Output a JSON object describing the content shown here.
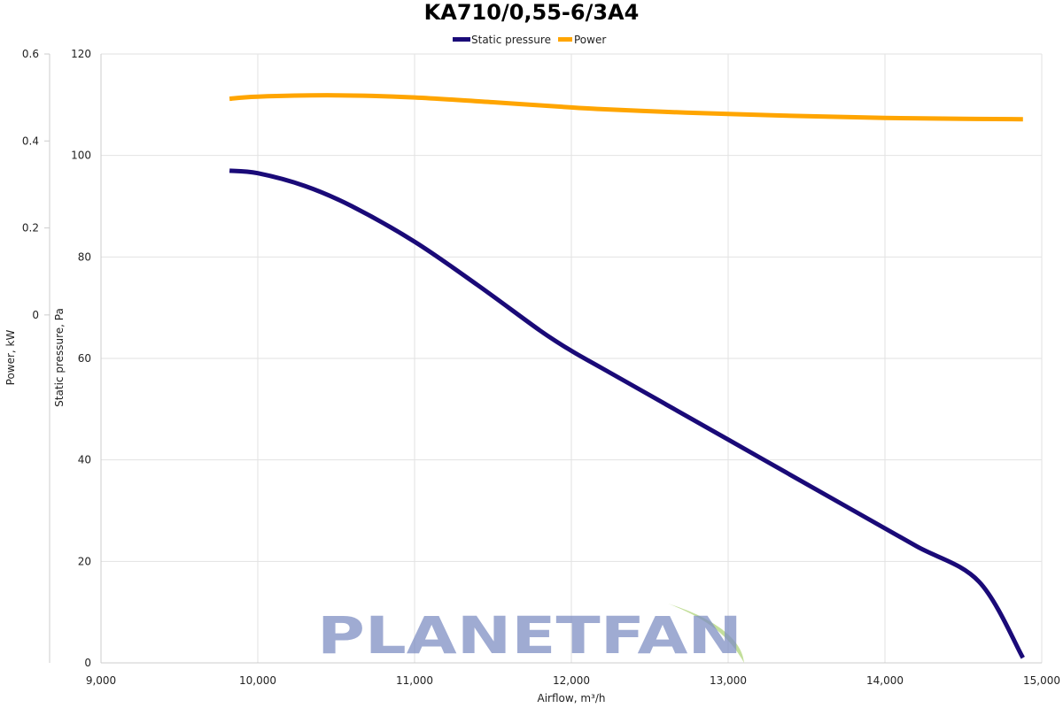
{
  "chart_data": {
    "type": "line",
    "title": "KA710/0,55-6/3A4",
    "xlabel": "Airflow, m³/h",
    "x_ticks": [
      "9,000",
      "10,000",
      "11,000",
      "12,000",
      "13,000",
      "14,000",
      "15,000"
    ],
    "xlim": [
      9000,
      15000
    ],
    "y_axes": [
      {
        "id": "pressure",
        "label": "Static pressure, Pa",
        "ticks": [
          "0",
          "20",
          "40",
          "60",
          "80",
          "100",
          "120"
        ],
        "lim": [
          0,
          120
        ]
      },
      {
        "id": "power",
        "label": "Power, kW",
        "ticks": [
          "0",
          "0.2",
          "0.4",
          "0.6"
        ],
        "lim": [
          -0.8,
          0.6
        ]
      }
    ],
    "grid": true,
    "legend_position": "top-center",
    "series": [
      {
        "name": "Static pressure",
        "axis": "pressure",
        "color": "#1a0a78",
        "x": [
          9820,
          10000,
          10300,
          10600,
          11000,
          11400,
          11800,
          12000,
          12200,
          12600,
          13000,
          13400,
          13800,
          14200,
          14600,
          14880
        ],
        "y": [
          97,
          96.5,
          94,
          90,
          83,
          74.5,
          65.5,
          61.5,
          58,
          51,
          44,
          37,
          30,
          23,
          16,
          1
        ]
      },
      {
        "name": "Power",
        "axis": "power",
        "color": "#ffa500",
        "x": [
          9820,
          10000,
          10500,
          11000,
          11500,
          12000,
          12200,
          12600,
          13000,
          13500,
          14000,
          14500,
          14880
        ],
        "y": [
          0.497,
          0.502,
          0.505,
          0.5,
          0.489,
          0.477,
          0.473,
          0.467,
          0.462,
          0.457,
          0.453,
          0.451,
          0.45
        ]
      }
    ]
  },
  "watermark": {
    "text": "PLANETFAN",
    "color": "#7f8fc4",
    "leaf_color": "#b9d98a"
  }
}
